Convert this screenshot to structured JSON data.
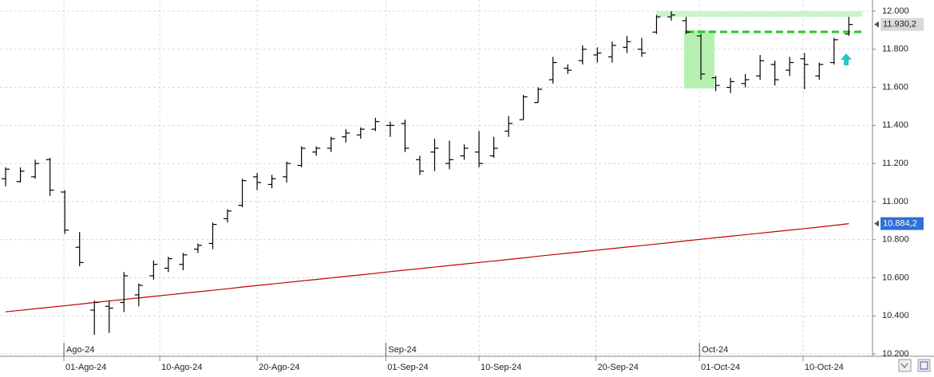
{
  "chart_data": {
    "type": "ohlc",
    "color": "#000000",
    "grid": true,
    "ylim": [
      10200,
      12000
    ],
    "yticks": [
      {
        "value": 10200,
        "label": "10.200"
      },
      {
        "value": 10400,
        "label": "10.400"
      },
      {
        "value": 10600,
        "label": "10.600"
      },
      {
        "value": 10800,
        "label": "10.800"
      },
      {
        "value": 11000,
        "label": "11.000"
      },
      {
        "value": 11200,
        "label": "11.200"
      },
      {
        "value": 11400,
        "label": "11.400"
      },
      {
        "value": 11600,
        "label": "11.600"
      },
      {
        "value": 11800,
        "label": "11.800"
      },
      {
        "value": 12000,
        "label": "12.000"
      }
    ],
    "xlim": [
      -0.38,
      58.6
    ],
    "xticks": [
      {
        "value": 3.94,
        "label": "01-Ago-24"
      },
      {
        "value": 10.42,
        "label": "10-Ago-24"
      },
      {
        "value": 17.0,
        "label": "20-Ago-24"
      },
      {
        "value": 25.7,
        "label": "01-Sep-24"
      },
      {
        "value": 32.0,
        "label": "10-Sep-24"
      },
      {
        "value": 39.9,
        "label": "20-Sep-24"
      },
      {
        "value": 46.9,
        "label": "01-Oct-24"
      },
      {
        "value": 53.9,
        "label": "10-Oct-24"
      }
    ],
    "period_labels": [
      {
        "value": 3.94,
        "label": "Ago-24"
      },
      {
        "value": 25.7,
        "label": "Sep-24"
      },
      {
        "value": 46.9,
        "label": "Oct-24"
      }
    ],
    "open": [
      11120,
      11105,
      11130,
      11220,
      11050,
      10760,
      10430,
      10450,
      10470,
      10510,
      10610,
      10650,
      10670,
      10750,
      10780,
      10910,
      10980,
      11130,
      11090,
      11130,
      11190,
      11260,
      11280,
      11340,
      11350,
      11380,
      11400,
      11410,
      11220,
      11260,
      11200,
      11240,
      11260,
      11240,
      11370,
      11430,
      11520,
      11640,
      11700,
      11740,
      11770,
      11760,
      11810,
      11800,
      11890,
      11970,
      11950,
      11870,
      11650,
      11600,
      11620,
      11660,
      11720,
      11690,
      11750,
      11660,
      11730,
      11880
    ],
    "high": [
      11180,
      11180,
      11220,
      11230,
      11060,
      10840,
      10480,
      10480,
      10630,
      10570,
      10690,
      10710,
      10730,
      10780,
      10890,
      10960,
      11120,
      11150,
      11140,
      11210,
      11290,
      11290,
      11340,
      11380,
      11390,
      11440,
      11420,
      11430,
      11240,
      11330,
      11320,
      11300,
      11370,
      11340,
      11450,
      11560,
      11600,
      11760,
      11720,
      11820,
      11810,
      11840,
      11870,
      11860,
      11980,
      12000,
      11970,
      11880,
      11660,
      11650,
      11670,
      11770,
      11740,
      11760,
      11780,
      11730,
      11860,
      11970
    ],
    "low": [
      11080,
      11100,
      11120,
      11030,
      10830,
      10660,
      10300,
      10310,
      10420,
      10450,
      10590,
      10630,
      10640,
      10730,
      10750,
      10890,
      10970,
      11060,
      11070,
      11100,
      11180,
      11240,
      11260,
      11310,
      11330,
      11370,
      11340,
      11260,
      11140,
      11160,
      11170,
      11220,
      11180,
      11230,
      11340,
      11430,
      11520,
      11620,
      11670,
      11720,
      11730,
      11730,
      11780,
      11760,
      11880,
      11950,
      11880,
      11640,
      11580,
      11570,
      11600,
      11640,
      11610,
      11660,
      11590,
      11640,
      11720,
      11870
    ],
    "close": [
      11170,
      11160,
      11200,
      11060,
      10850,
      10680,
      10470,
      10440,
      10610,
      10560,
      10670,
      10700,
      10720,
      10770,
      10880,
      10950,
      11110,
      11100,
      11120,
      11200,
      11280,
      11280,
      11330,
      11360,
      11380,
      11420,
      11400,
      11280,
      11160,
      11280,
      11220,
      11280,
      11200,
      11280,
      11410,
      11550,
      11590,
      11730,
      11690,
      11800,
      11780,
      11820,
      11840,
      11780,
      11970,
      11980,
      11890,
      11670,
      11610,
      11630,
      11640,
      11740,
      11640,
      11730,
      11720,
      11720,
      11850,
      11930
    ],
    "moving_average": {
      "color": "#c00000",
      "values": [
        10421,
        10429,
        10437,
        10445,
        10453,
        10461,
        10470,
        10478,
        10486,
        10494,
        10502,
        10510,
        10518,
        10526,
        10534,
        10542,
        10551,
        10559,
        10567,
        10575,
        10583,
        10591,
        10599,
        10607,
        10615,
        10623,
        10632,
        10640,
        10648,
        10656,
        10664,
        10672,
        10680,
        10688,
        10696,
        10704,
        10713,
        10721,
        10729,
        10737,
        10745,
        10753,
        10761,
        10769,
        10777,
        10785,
        10794,
        10802,
        10810,
        10818,
        10826,
        10834,
        10842,
        10850,
        10858,
        10866,
        10875,
        10884
      ]
    },
    "last_price": {
      "value": 11930.2,
      "label": "11.930,2"
    },
    "ma_last": {
      "value": 10884.2,
      "label": "10.884,2"
    }
  }
}
